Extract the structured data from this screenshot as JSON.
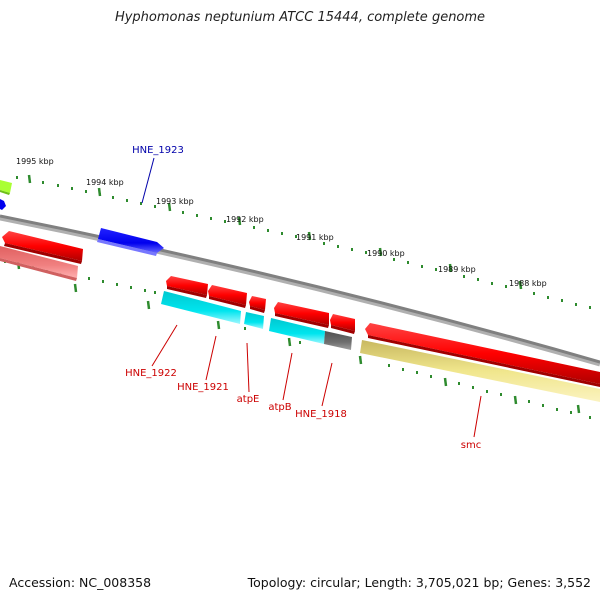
{
  "title": "Hyphomonas neptunium ATCC 15444, complete genome",
  "footer": {
    "accession": "Accession: NC_008358",
    "summary": "Topology: circular; Length: 3,705,021 bp; Genes: 3,552"
  },
  "colors": {
    "background": "#ffffff",
    "backbone": "#808080",
    "tick": "#2e8b2e",
    "label_text": "#111111",
    "forward_gene": "#ff0000",
    "forward_shadow": "#b00000",
    "top_gene": "#0000ee",
    "partial_top_gene": "#aaff33",
    "partial_blue_gene": "#0000ee",
    "reverse_gene": "#f08080",
    "cds_cyan": "#00e5ee",
    "cds_gray": "#707070",
    "cds_khaki": "#f0e68c",
    "red_label": "#cc0000",
    "blue_label": "#0000aa"
  },
  "scale_labels": [
    "1995 kbp",
    "1994 kbp",
    "1993 kbp",
    "1992 kbp",
    "1991 kbp",
    "1990 kbp",
    "1989 kbp",
    "1988 kbp"
  ],
  "gene_labels": [
    {
      "text": "HNE_1923",
      "color": "blue"
    },
    {
      "text": "HNE_1922",
      "color": "red"
    },
    {
      "text": "HNE_1921",
      "color": "red"
    },
    {
      "text": "atpE",
      "color": "red"
    },
    {
      "text": "atpB",
      "color": "red"
    },
    {
      "text": "HNE_1918",
      "color": "red"
    },
    {
      "text": "smc",
      "color": "red"
    }
  ]
}
